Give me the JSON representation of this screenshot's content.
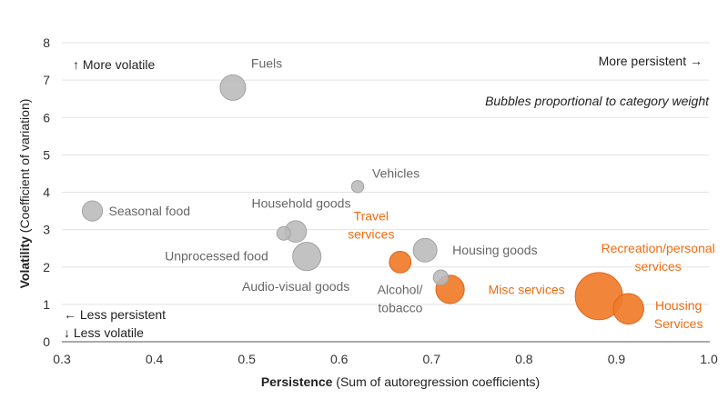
{
  "chart_data": {
    "type": "scatter",
    "title": "",
    "xlabel_bold": "Persistence",
    "xlabel_rest": " (Sum of autoregression coefficients)",
    "ylabel_bold": "Volatility",
    "ylabel_rest": " (Coefficient of variation)",
    "xlim": [
      0.3,
      1.0
    ],
    "ylim": [
      0,
      8
    ],
    "x_ticks": [
      "0.3",
      "0.4",
      "0.5",
      "0.6",
      "0.7",
      "0.8",
      "0.9",
      "1.0"
    ],
    "y_ticks": [
      "0",
      "1",
      "2",
      "3",
      "4",
      "5",
      "6",
      "7",
      "8"
    ],
    "grid": "horizontal",
    "annotations": {
      "top_left": "↑ More volatile",
      "top_right": "More persistent →",
      "bubble_note": "Bubbles proportional to category weight",
      "bottom_left_1": "← Less persistent",
      "bottom_left_2": "↓ Less volatile"
    },
    "colors": {
      "grey": "#b9b9b9",
      "orange": "#f07c2a",
      "grey_label": "#666666",
      "orange_label": "#ef6c12"
    },
    "points": [
      {
        "name": "Fuels",
        "lines": [
          "Fuels"
        ],
        "x": 0.485,
        "y": 6.8,
        "size": 3.5,
        "group": "grey"
      },
      {
        "name": "Seasonal food",
        "lines": [
          "Seasonal food"
        ],
        "x": 0.333,
        "y": 3.5,
        "size": 2.2,
        "group": "grey"
      },
      {
        "name": "Vehicles",
        "lines": [
          "Vehicles"
        ],
        "x": 0.62,
        "y": 4.15,
        "size": 0.8,
        "group": "grey"
      },
      {
        "name": "Household goods",
        "lines": [
          "Household goods"
        ],
        "x": 0.553,
        "y": 2.95,
        "size": 2.5,
        "group": "grey"
      },
      {
        "name": "Unprocessed food",
        "lines": [
          "Unprocessed food"
        ],
        "x": 0.54,
        "y": 2.9,
        "size": 1.0,
        "group": "grey"
      },
      {
        "name": "Audio-visual goods",
        "lines": [
          "Audio-visual goods"
        ],
        "x": 0.565,
        "y": 2.28,
        "size": 4.3,
        "group": "grey"
      },
      {
        "name": "Housing goods",
        "lines": [
          "Housing goods"
        ],
        "x": 0.693,
        "y": 2.45,
        "size": 3.0,
        "group": "grey"
      },
      {
        "name": "Alcohol/ tobacco",
        "lines": [
          "Alcohol/",
          "tobacco"
        ],
        "x": 0.71,
        "y": 1.72,
        "size": 1.2,
        "group": "grey"
      },
      {
        "name": "Travel services",
        "lines": [
          "Travel",
          "services"
        ],
        "x": 0.666,
        "y": 2.13,
        "size": 2.5,
        "group": "orange"
      },
      {
        "name": "Misc services",
        "lines": [
          "Misc services"
        ],
        "x": 0.72,
        "y": 1.4,
        "size": 4.3,
        "group": "orange"
      },
      {
        "name": "Recreation/personal services",
        "lines": [
          "Recreation/personal",
          "services"
        ],
        "x": 0.881,
        "y": 1.22,
        "size": 12.0,
        "group": "orange"
      },
      {
        "name": "Housing Services",
        "lines": [
          "Housing",
          "Services"
        ],
        "x": 0.913,
        "y": 0.88,
        "size": 5.0,
        "group": "orange"
      }
    ]
  }
}
